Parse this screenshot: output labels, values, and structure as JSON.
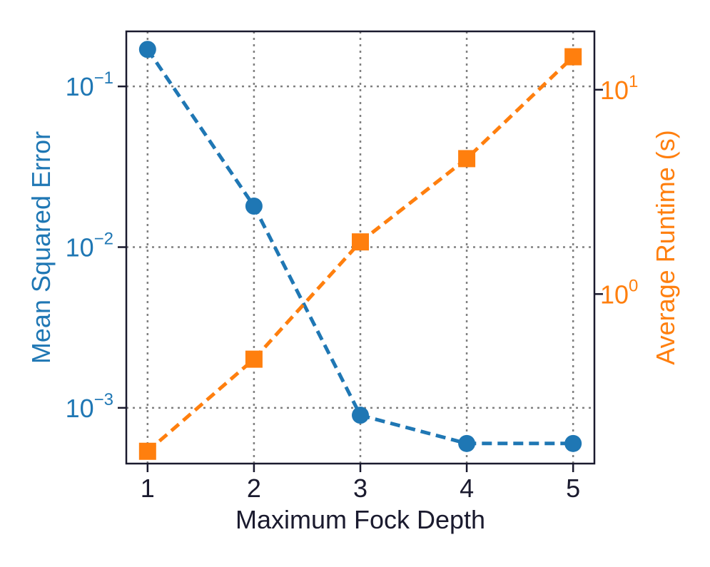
{
  "chart_data": {
    "type": "line",
    "xlabel": "Maximum Fock Depth",
    "x": [
      1,
      2,
      3,
      4,
      5
    ],
    "x_tick_labels": [
      "1",
      "2",
      "3",
      "4",
      "5"
    ],
    "xlim": [
      0.8,
      5.2
    ],
    "grid": true,
    "left_axis": {
      "label": "Mean Squared Error",
      "scale": "log",
      "ylim": [
        0.00045,
        0.22
      ],
      "ticks": [
        {
          "value": 0.001,
          "base": "10",
          "exp": "−3"
        },
        {
          "value": 0.01,
          "base": "10",
          "exp": "−2"
        },
        {
          "value": 0.1,
          "base": "10",
          "exp": "−1"
        }
      ],
      "color": "#1f77b4"
    },
    "right_axis": {
      "label": "Average Runtime (s)",
      "scale": "log",
      "ylim": [
        0.148,
        19.3
      ],
      "ticks": [
        {
          "value": 1,
          "base": "10",
          "exp": "0"
        },
        {
          "value": 10,
          "base": "10",
          "exp": "1"
        }
      ],
      "color": "#ff7f0e"
    },
    "series": [
      {
        "axis": "left",
        "color": "#1f77b4",
        "marker": "circle",
        "linestyle": "dashed",
        "values": [
          0.17,
          0.018,
          0.0009,
          0.0006,
          0.0006
        ]
      },
      {
        "axis": "right",
        "color": "#ff7f0e",
        "marker": "square",
        "linestyle": "dashed",
        "values": [
          0.17,
          0.48,
          1.8,
          4.6,
          14.5
        ]
      }
    ]
  }
}
